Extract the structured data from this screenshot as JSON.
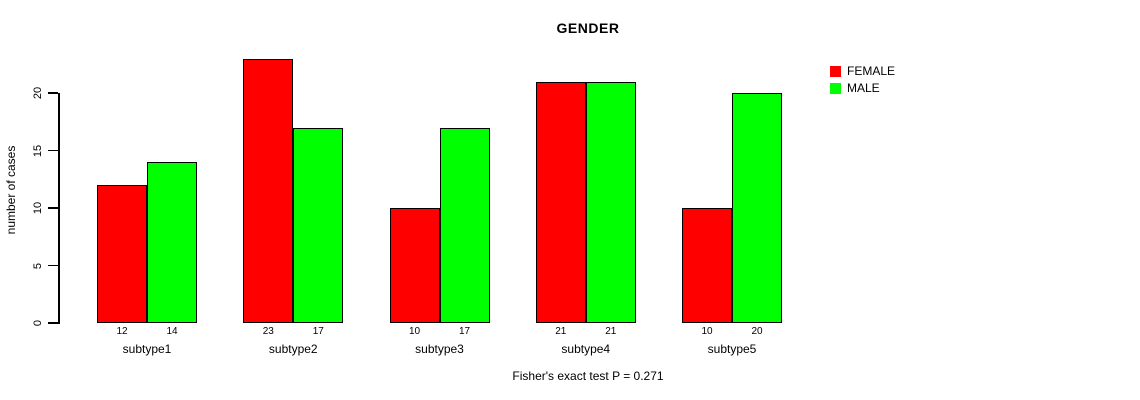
{
  "title": "GENDER",
  "caption": "Fisher's exact test P = 0.271",
  "colors": {
    "female": "#FF0000",
    "male": "#00FF00",
    "axis": "#000000",
    "background": "#FFFFFF"
  },
  "legend": {
    "items": [
      {
        "label": "FEMALE",
        "color": "#FF0000"
      },
      {
        "label": "MALE",
        "color": "#00FF00"
      }
    ],
    "position": "top-right"
  },
  "chart_data": {
    "type": "bar",
    "title": "GENDER",
    "xlabel": "",
    "ylabel": "number of cases",
    "categories": [
      "subtype1",
      "subtype2",
      "subtype3",
      "subtype4",
      "subtype5"
    ],
    "series": [
      {
        "name": "FEMALE",
        "color": "#FF0000",
        "values": [
          12,
          23,
          10,
          21,
          10
        ]
      },
      {
        "name": "MALE",
        "color": "#00FF00",
        "values": [
          14,
          17,
          17,
          21,
          20
        ]
      }
    ],
    "bar_value_labels": {
      "FEMALE": [
        12,
        23,
        10,
        21,
        10
      ],
      "MALE": [
        14,
        17,
        17,
        21,
        20
      ]
    },
    "ylim": [
      0,
      20
    ],
    "yticks": [
      0,
      5,
      10,
      15,
      20
    ],
    "grid": false,
    "legend_position": "top-right",
    "annotation": "Fisher's exact test P = 0.271"
  }
}
